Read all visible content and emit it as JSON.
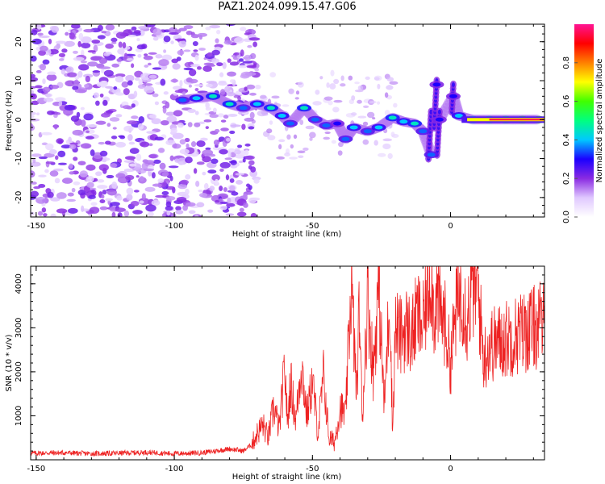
{
  "title": "PAZ1.2024.099.15.47.G06",
  "colors": {
    "snr_line": "#ee2222",
    "axis": "#000000",
    "background": "#ffffff"
  },
  "chart_data": [
    {
      "type": "heatmap",
      "xlabel": "Height of straight line (km)",
      "ylabel": "Frequency (Hz)",
      "xlim": [
        -152,
        34
      ],
      "ylim": [
        -25,
        24.5
      ],
      "xticks": [
        -150,
        -100,
        -50,
        0
      ],
      "xtick_labels": [
        "-150",
        "-100",
        "-50",
        "0"
      ],
      "yticks": [
        -20,
        -10,
        0,
        10,
        20
      ],
      "ytick_labels": [
        "-20",
        "-10",
        "0",
        "10",
        "20"
      ],
      "colorbar": {
        "label": "Normalized spectral amplitude",
        "range": [
          0,
          1
        ],
        "ticks": [
          0,
          0.2,
          0.4,
          0.6,
          0.8
        ],
        "tick_labels": [
          "0.0",
          "0.2",
          "0.4",
          "0.6",
          "0.8"
        ],
        "colormap": [
          "#ffffff",
          "#e0c8ff",
          "#8a2be2",
          "#1b00ff",
          "#00c8ff",
          "#00ff80",
          "#40ff00",
          "#ffff00",
          "#ff8000",
          "#ff0000",
          "#ff1493"
        ]
      },
      "ridge_points": [
        {
          "x": -97,
          "y": 5,
          "a": 0.35
        },
        {
          "x": -92,
          "y": 5.5,
          "a": 0.4
        },
        {
          "x": -86,
          "y": 6,
          "a": 0.45
        },
        {
          "x": -80,
          "y": 4,
          "a": 0.45
        },
        {
          "x": -75,
          "y": 3,
          "a": 0.35
        },
        {
          "x": -70,
          "y": 4,
          "a": 0.4
        },
        {
          "x": -65,
          "y": 3,
          "a": 0.45
        },
        {
          "x": -61,
          "y": 1,
          "a": 0.4
        },
        {
          "x": -58,
          "y": -1,
          "a": 0.35
        },
        {
          "x": -53,
          "y": 3,
          "a": 0.45
        },
        {
          "x": -49,
          "y": 0,
          "a": 0.35
        },
        {
          "x": -45,
          "y": -1.5,
          "a": 0.35
        },
        {
          "x": -41,
          "y": -1,
          "a": 0.3
        },
        {
          "x": -38,
          "y": -5,
          "a": 0.35
        },
        {
          "x": -35,
          "y": -2,
          "a": 0.4
        },
        {
          "x": -30,
          "y": -3,
          "a": 0.35
        },
        {
          "x": -26,
          "y": -2,
          "a": 0.4
        },
        {
          "x": -21,
          "y": 0.5,
          "a": 0.45
        },
        {
          "x": -17,
          "y": -0.5,
          "a": 0.4
        },
        {
          "x": -13,
          "y": -1,
          "a": 0.45
        },
        {
          "x": -10,
          "y": -3,
          "a": 0.35
        },
        {
          "x": -7,
          "y": -9,
          "a": 0.35
        },
        {
          "x": -5,
          "y": 9,
          "a": 0.3
        },
        {
          "x": -4,
          "y": 0,
          "a": 0.3
        },
        {
          "x": 1,
          "y": 6,
          "a": 0.3
        },
        {
          "x": 3,
          "y": 1,
          "a": 0.4
        },
        {
          "x": 8,
          "y": 0,
          "a": 0.6
        },
        {
          "x": 14,
          "y": 0,
          "a": 0.7
        },
        {
          "x": 20,
          "y": 0,
          "a": 0.75
        },
        {
          "x": 26,
          "y": 0,
          "a": 0.8
        },
        {
          "x": 32,
          "y": 0,
          "a": 0.85
        }
      ]
    },
    {
      "type": "line",
      "xlabel": "Height of straight line (km)",
      "ylabel": "SNR (10 * v/v)",
      "xlim": [
        -152,
        34
      ],
      "ylim": [
        0,
        4400
      ],
      "xticks": [
        -150,
        -100,
        -50,
        0
      ],
      "xtick_labels": [
        "-150",
        "-100",
        "-50",
        "0"
      ],
      "yticks": [
        1000,
        2000,
        3000,
        4000
      ],
      "ytick_labels": [
        "1000",
        "2000",
        "3000",
        "4000"
      ],
      "series": [
        {
          "x": [
            -152,
            -140,
            -130,
            -120,
            -110,
            -100,
            -90,
            -85,
            -80,
            -75,
            -72,
            -70,
            -68,
            -66,
            -64,
            -62,
            -60,
            -59,
            -58,
            -56,
            -54,
            -52,
            -50,
            -48,
            -46,
            -44,
            -42,
            -40,
            -38,
            -36,
            -34,
            -33,
            -32,
            -30,
            -28,
            -26,
            -24,
            -22,
            -21,
            -20,
            -18,
            -16,
            -14,
            -12,
            -10,
            -8,
            -7,
            -6,
            -5,
            -4,
            -2,
            0,
            2,
            4,
            6,
            8,
            10,
            12,
            14,
            18,
            22,
            26,
            30,
            34
          ],
          "y": [
            150,
            160,
            140,
            150,
            170,
            140,
            160,
            200,
            250,
            200,
            350,
            600,
            800,
            500,
            1200,
            700,
            2100,
            800,
            1800,
            900,
            2200,
            1000,
            1800,
            600,
            1900,
            500,
            400,
            1200,
            1000,
            4000,
            1500,
            3500,
            900,
            3800,
            2000,
            4000,
            1200,
            3800,
            600,
            3000,
            2800,
            3000,
            2800,
            3300,
            3000,
            4000,
            4300,
            3300,
            3700,
            3400,
            3100,
            2200,
            3400,
            3900,
            3200,
            4000,
            3800,
            2300,
            2600,
            2700,
            2800,
            2900,
            3000,
            3100
          ]
        }
      ]
    }
  ]
}
